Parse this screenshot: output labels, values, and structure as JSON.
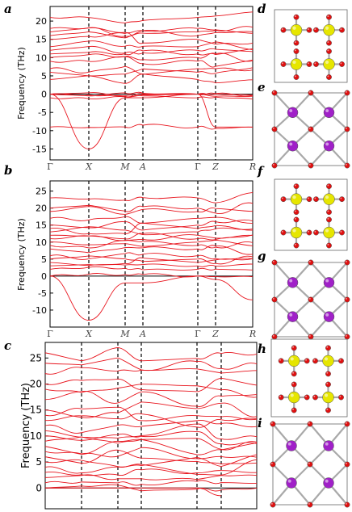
{
  "colors": {
    "bands": "#e8141d",
    "oxygen": "#e01010",
    "yellow_atom": "#e6e600",
    "purple_atom": "#a020c8",
    "bond": "#a9a9a9"
  },
  "chart_data": [
    {
      "panel": "a",
      "type": "line",
      "ylabel": "Frequency (THz)",
      "ylim": [
        -18,
        24
      ],
      "yticks": [
        -15,
        -10,
        -5,
        0,
        5,
        10,
        15,
        20
      ],
      "kpath": [
        "Γ",
        "X",
        "M",
        "A",
        "Γ",
        "Z",
        "R"
      ],
      "kpath_italic": [
        false,
        true,
        true,
        true,
        false,
        true,
        true
      ],
      "grid": false,
      "bands_at_gamma": [
        0,
        0,
        0,
        -1,
        -9,
        4,
        6,
        7,
        9,
        10,
        11,
        12,
        13,
        15,
        16,
        17,
        18,
        21
      ],
      "lowest_band": {
        "x": [
          "Γ",
          "X",
          "M",
          "A",
          "Γ",
          "Z",
          "R"
        ],
        "y": [
          0,
          -15,
          -1,
          -1,
          0,
          -9,
          -9
        ]
      }
    },
    {
      "panel": "b",
      "type": "line",
      "ylabel": "Frequency (THz)",
      "ylim": [
        -15,
        28
      ],
      "yticks": [
        -10,
        -5,
        0,
        5,
        10,
        15,
        20,
        25
      ],
      "kpath": [
        "Γ",
        "X",
        "M",
        "A",
        "Γ",
        "Z",
        "R"
      ],
      "kpath_italic": [
        false,
        true,
        true,
        true,
        false,
        true,
        true
      ],
      "grid": false,
      "bands_at_gamma": [
        0,
        2,
        3,
        4,
        5,
        6,
        8,
        9,
        10,
        11,
        12,
        13,
        14,
        15,
        17,
        19,
        20,
        23
      ],
      "lowest_band": {
        "x": [
          "Γ",
          "X",
          "M",
          "A",
          "Γ",
          "Z",
          "R"
        ],
        "y": [
          0,
          -13,
          -2,
          -2,
          0,
          -1,
          -7
        ]
      }
    },
    {
      "panel": "c",
      "type": "line",
      "ylabel": "Frequency (THz)",
      "ylim": [
        -4,
        28
      ],
      "yticks": [
        0,
        5,
        10,
        15,
        20,
        25
      ],
      "kpath": [],
      "grid": false,
      "bands_at_gamma": [
        0,
        1,
        2,
        3,
        4,
        5,
        6,
        7,
        8,
        9,
        10,
        11,
        12,
        13,
        14,
        15,
        17,
        19,
        20,
        22,
        24,
        26
      ],
      "lowest_band": {
        "x": [
          0,
          1,
          2,
          3,
          4,
          5
        ],
        "y": [
          0,
          0,
          0,
          0,
          0,
          -1.5
        ]
      }
    }
  ],
  "panel_labels": {
    "a": "a",
    "b": "b",
    "c": "c",
    "d": "d",
    "e": "e",
    "f": "f",
    "g": "g",
    "h": "h",
    "i": "i"
  }
}
